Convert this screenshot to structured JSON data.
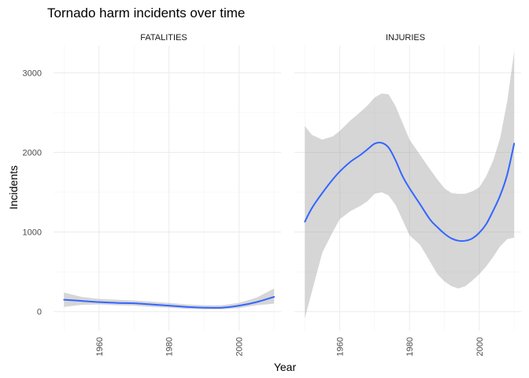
{
  "chart_data": {
    "type": "line",
    "title": "Tornado harm incidents over time",
    "xlabel": "Year",
    "ylabel": "Incidents",
    "xlim": [
      1947,
      2012
    ],
    "ylim": [
      -240,
      3340
    ],
    "x_ticks": [
      1960,
      1980,
      2000
    ],
    "y_ticks": [
      0,
      1000,
      2000,
      3000
    ],
    "grid": true,
    "colors": {
      "line": "#3366ff",
      "band": "#999999"
    },
    "panels": [
      {
        "name": "FATALITIES",
        "x": [
          1950,
          1955,
          1960,
          1965,
          1970,
          1975,
          1980,
          1985,
          1990,
          1995,
          2000,
          2005,
          2010
        ],
        "y": [
          150,
          135,
          120,
          110,
          105,
          90,
          75,
          60,
          50,
          50,
          75,
          120,
          185
        ],
        "lower": [
          60,
          85,
          90,
          80,
          75,
          60,
          50,
          35,
          30,
          30,
          45,
          80,
          100
        ],
        "upper": [
          240,
          185,
          160,
          150,
          140,
          125,
          110,
          90,
          80,
          80,
          110,
          175,
          290
        ]
      },
      {
        "name": "INJURIES",
        "x": [
          1950,
          1952,
          1955,
          1958,
          1960,
          1963,
          1966,
          1968,
          1970,
          1972,
          1974,
          1976,
          1978,
          1980,
          1983,
          1986,
          1988,
          1990,
          1992,
          1994,
          1996,
          1998,
          2000,
          2002,
          2004,
          2006,
          2008,
          2010
        ],
        "y": [
          1130,
          1300,
          1490,
          1660,
          1760,
          1880,
          1970,
          2040,
          2110,
          2120,
          2060,
          1900,
          1700,
          1550,
          1350,
          1150,
          1060,
          980,
          920,
          890,
          890,
          920,
          990,
          1100,
          1270,
          1460,
          1720,
          2110
        ],
        "lower": [
          -80,
          250,
          740,
          1000,
          1160,
          1260,
          1330,
          1390,
          1480,
          1500,
          1460,
          1340,
          1150,
          960,
          840,
          620,
          470,
          380,
          320,
          290,
          320,
          390,
          470,
          570,
          690,
          820,
          910,
          930
        ],
        "upper": [
          2330,
          2220,
          2160,
          2200,
          2270,
          2400,
          2510,
          2590,
          2690,
          2740,
          2730,
          2580,
          2370,
          2160,
          1970,
          1780,
          1660,
          1550,
          1490,
          1480,
          1480,
          1510,
          1560,
          1700,
          1900,
          2180,
          2640,
          3260
        ]
      }
    ]
  }
}
